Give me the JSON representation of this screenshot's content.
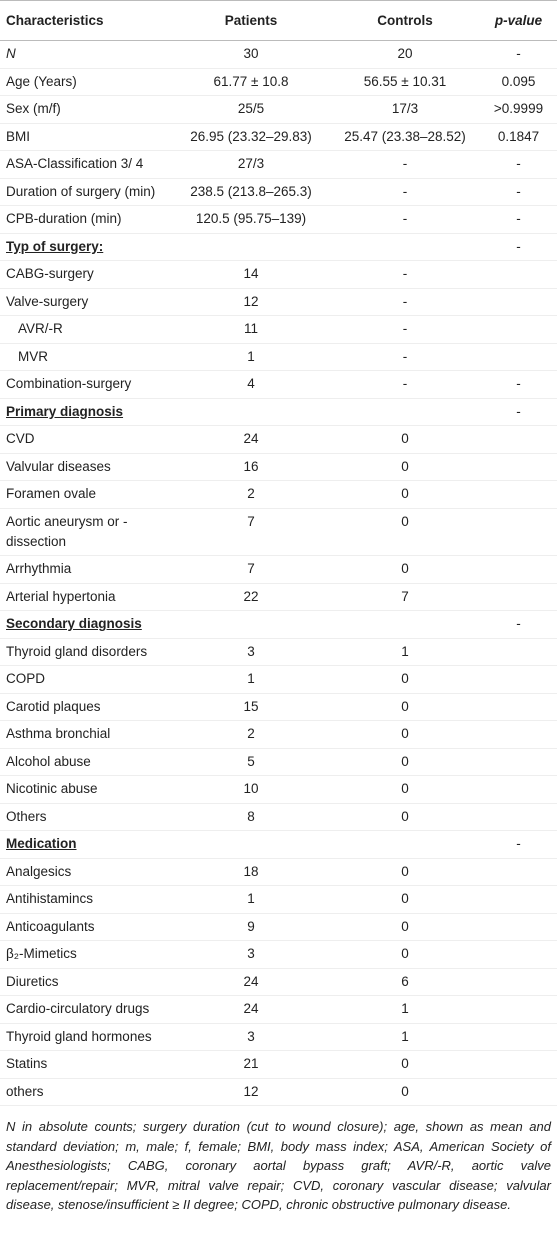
{
  "table": {
    "header": [
      "Characteristics",
      "Patients",
      "Controls",
      "p-value"
    ],
    "rows": [
      {
        "label": "N",
        "italic": true,
        "patients": "30",
        "controls": "20",
        "p": "-"
      },
      {
        "label": "Age (Years)",
        "patients": "61.77 ± 10.8",
        "controls": "56.55 ± 10.31",
        "p": "0.095"
      },
      {
        "label": "Sex (m/f)",
        "patients": "25/5",
        "controls": "17/3",
        "p": ">0.9999"
      },
      {
        "label": "BMI",
        "patients": "26.95 (23.32–29.83)",
        "controls": "25.47 (23.38–28.52)",
        "p": "0.1847"
      },
      {
        "label": "ASA-Classification 3/ 4",
        "patients": "27/3",
        "controls": "-",
        "p": "-"
      },
      {
        "label": "Duration of surgery (min)",
        "patients": "238.5 (213.8–265.3)",
        "controls": "-",
        "p": "-"
      },
      {
        "label": "CPB-duration (min)",
        "patients": "120.5 (95.75–139)",
        "controls": "-",
        "p": "-"
      },
      {
        "label": "Typ of surgery:",
        "section": true,
        "p": "-"
      },
      {
        "label": "CABG-surgery",
        "patients": "14",
        "controls": "-"
      },
      {
        "label": "Valve-surgery",
        "patients": "12",
        "controls": "-"
      },
      {
        "label": "AVR/-R",
        "indent": true,
        "patients": "11",
        "controls": "-"
      },
      {
        "label": "MVR",
        "indent": true,
        "patients": "1",
        "controls": "-"
      },
      {
        "label": "Combination-surgery",
        "patients": "4",
        "controls": "-",
        "p": "-"
      },
      {
        "label": "Primary diagnosis",
        "section": true,
        "p": "-"
      },
      {
        "label": "CVD",
        "patients": "24",
        "controls": "0"
      },
      {
        "label": "Valvular diseases",
        "patients": "16",
        "controls": "0"
      },
      {
        "label": "Foramen ovale",
        "patients": "2",
        "controls": "0"
      },
      {
        "label": "Aortic aneurysm or -dissection",
        "patients": "7",
        "controls": "0"
      },
      {
        "label": "Arrhythmia",
        "patients": "7",
        "controls": "0"
      },
      {
        "label": "Arterial hypertonia",
        "patients": "22",
        "controls": "7"
      },
      {
        "label": "Secondary diagnosis",
        "section": true,
        "p": "-"
      },
      {
        "label": "Thyroid gland disorders",
        "patients": "3",
        "controls": "1"
      },
      {
        "label": "COPD",
        "patients": "1",
        "controls": "0"
      },
      {
        "label": "Carotid plaques",
        "patients": "15",
        "controls": "0"
      },
      {
        "label": "Asthma bronchial",
        "patients": "2",
        "controls": "0"
      },
      {
        "label": "Alcohol abuse",
        "patients": "5",
        "controls": "0"
      },
      {
        "label": "Nicotinic abuse",
        "patients": "10",
        "controls": "0"
      },
      {
        "label": "Others",
        "patients": "8",
        "controls": "0"
      },
      {
        "label": "Medication",
        "section": true,
        "p": "-"
      },
      {
        "label": "Analgesics",
        "patients": "18",
        "controls": "0"
      },
      {
        "label": "Antihistamincs",
        "patients": "1",
        "controls": "0"
      },
      {
        "label": "Anticoagulants",
        "patients": "9",
        "controls": "0"
      },
      {
        "label": "β₂-Mimetics",
        "patients": "3",
        "controls": "0"
      },
      {
        "label": "Diuretics",
        "patients": "24",
        "controls": "6"
      },
      {
        "label": "Cardio-circulatory drugs",
        "patients": "24",
        "controls": "1"
      },
      {
        "label": "Thyroid gland hormones",
        "patients": "3",
        "controls": "1"
      },
      {
        "label": "Statins",
        "patients": "21",
        "controls": "0"
      },
      {
        "label": "others",
        "patients": "12",
        "controls": "0"
      }
    ],
    "footnote": "N in absolute counts; surgery duration (cut to wound closure); age, shown as mean and standard deviation; m, male; f, female; BMI, body mass index; ASA, American Society of Anesthesiologists; CABG, coronary aortal bypass graft; AVR/-R, aortic valve replacement/repair; MVR, mitral valve repair; CVD, coronary vascular disease; valvular disease, stenose/insufficient ≥ II degree; COPD, chronic obstructive pulmonary disease."
  }
}
